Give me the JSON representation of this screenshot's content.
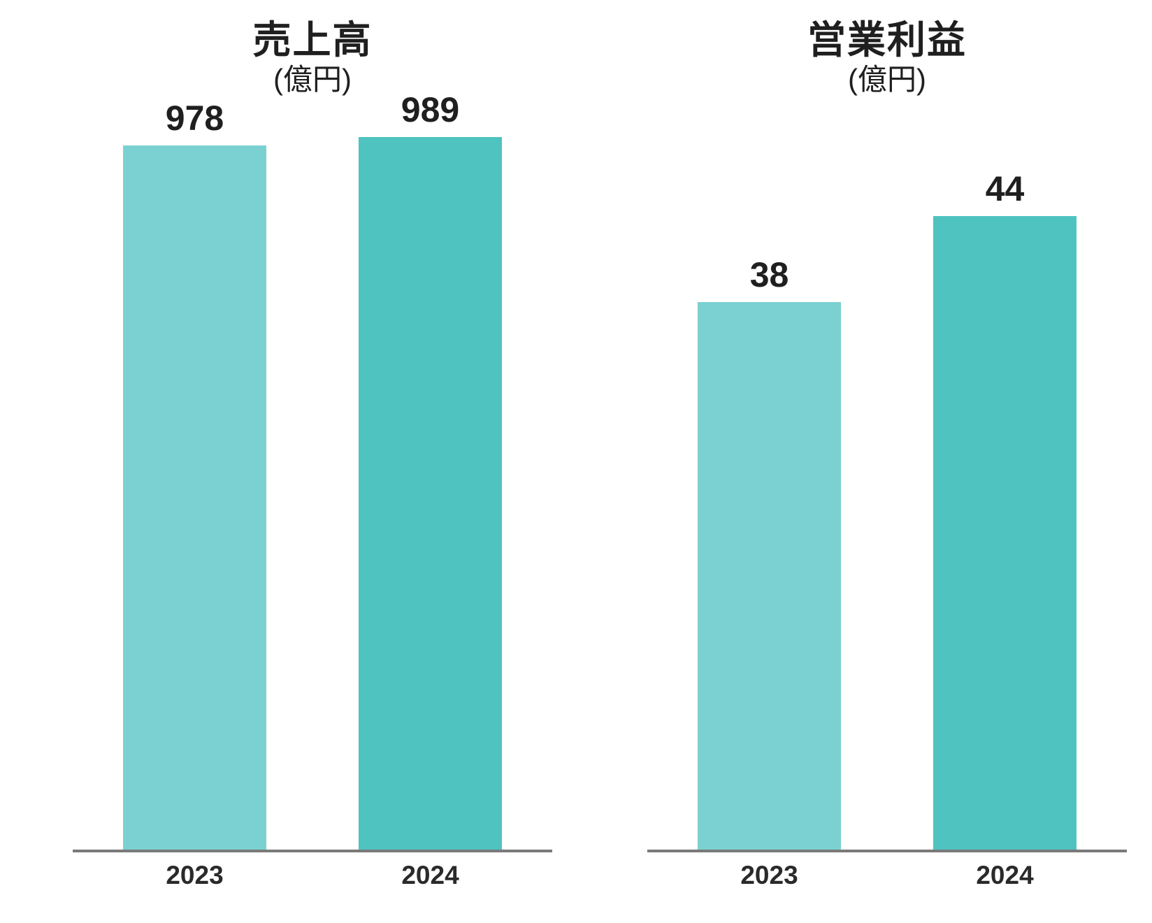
{
  "colors": {
    "bar_2023": "#7BD1D1",
    "bar_2024": "#4EC3C0",
    "axis_line": "#7a7a7a",
    "text": "#1f1f1f"
  },
  "chart_data": [
    {
      "type": "bar",
      "title": "売上高",
      "subtitle": "(億円)",
      "unit": "億円",
      "categories": [
        "2023",
        "2024"
      ],
      "values": [
        978,
        989
      ],
      "ylim": [
        0,
        1000
      ],
      "grid": false,
      "legend": "none",
      "data_labels": true
    },
    {
      "type": "bar",
      "title": "営業利益",
      "subtitle": "(億円)",
      "unit": "億円",
      "categories": [
        "2023",
        "2024"
      ],
      "values": [
        38,
        44
      ],
      "ylim": [
        0,
        50
      ],
      "grid": false,
      "legend": "none",
      "data_labels": true
    }
  ]
}
